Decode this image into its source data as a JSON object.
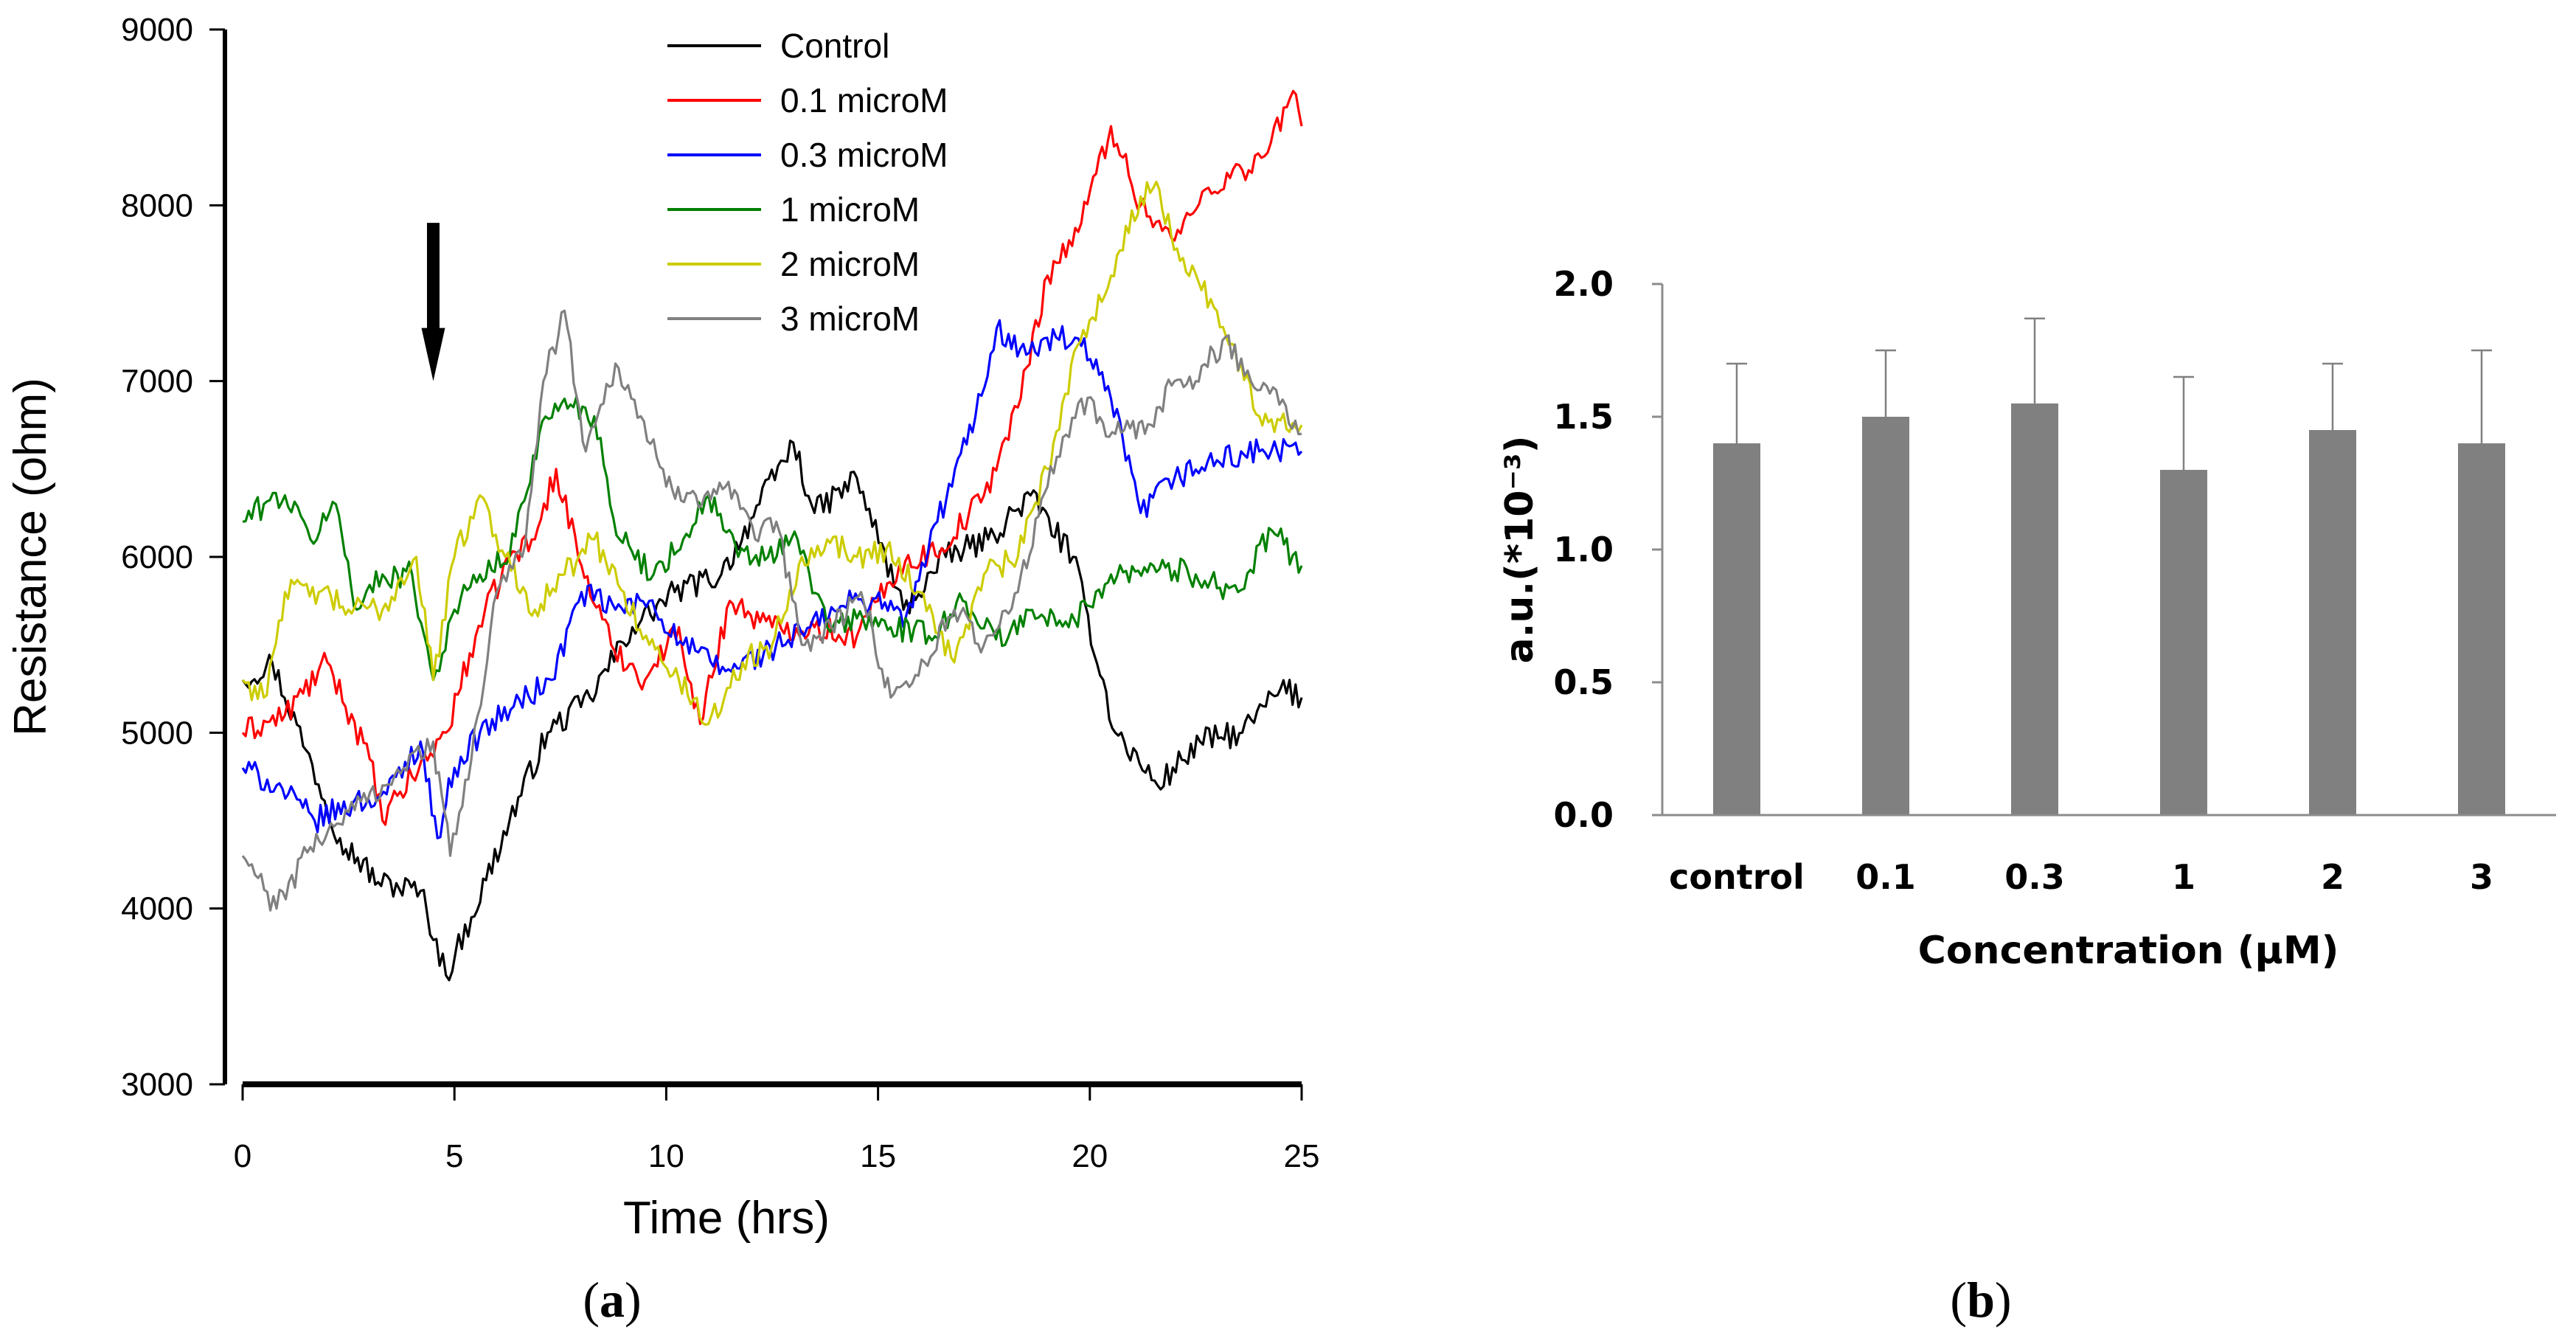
{
  "chart_data": [
    {
      "type": "line",
      "panel_label": "a",
      "xlabel": "Time (hrs)",
      "ylabel": "Resistance (ohm)",
      "xlim": [
        0,
        25
      ],
      "ylim": [
        3000,
        9000
      ],
      "xticks": [
        "0",
        "5",
        "10",
        "15",
        "20",
        "25"
      ],
      "yticks": [
        "3000",
        "4000",
        "5000",
        "6000",
        "7000",
        "8000",
        "9000"
      ],
      "annotation": {
        "type": "arrow",
        "x": 4.5,
        "y_from": 7900,
        "y_to": 7000,
        "label": ""
      },
      "legend_position": "top-center",
      "series": [
        {
          "name": "Control",
          "color": "#000000",
          "x": [
            0,
            0.7,
            1.5,
            2.3,
            3.2,
            4.2,
            4.8,
            5.4,
            6.3,
            7.2,
            8.2,
            9.2,
            10.2,
            11.3,
            12.2,
            13.0,
            13.5,
            14.5,
            15.6,
            16.6,
            17.6,
            18.6,
            19.6,
            20.6,
            21.6,
            22.6,
            23.6,
            24.5,
            25
          ],
          "y": [
            5300,
            5400,
            4900,
            4400,
            4150,
            4100,
            3620,
            3950,
            4500,
            5000,
            5200,
            5600,
            5800,
            5900,
            6300,
            6650,
            6250,
            6450,
            5700,
            6000,
            6100,
            6350,
            6000,
            5000,
            4700,
            4950,
            5000,
            5250,
            5200
          ]
        },
        {
          "name": "0.1 microM",
          "color": "#ff0000",
          "x": [
            0,
            1.0,
            2.0,
            3.0,
            3.3,
            4.0,
            4.8,
            5.5,
            6.3,
            6.9,
            7.4,
            8.0,
            8.7,
            9.5,
            10.3,
            10.8,
            11.5,
            12.5,
            13.5,
            14.5,
            15.5,
            16.5,
            17.5,
            18.3,
            19.0,
            19.8,
            20.5,
            21.2,
            22.0,
            22.8,
            23.6,
            24.2,
            24.8,
            25
          ],
          "y": [
            5000,
            5100,
            5400,
            4850,
            4500,
            4750,
            5000,
            5550,
            6000,
            6100,
            6500,
            5950,
            5500,
            5300,
            5600,
            5050,
            5750,
            5600,
            5600,
            5550,
            5950,
            6050,
            6350,
            6850,
            7600,
            7900,
            8450,
            8000,
            7800,
            8100,
            8200,
            8300,
            8650,
            8450
          ]
        },
        {
          "name": "0.3 microM",
          "color": "#0000ff",
          "x": [
            0,
            0.8,
            1.7,
            2.6,
            3.4,
            4.2,
            4.6,
            5.0,
            5.6,
            6.4,
            7.3,
            8.0,
            8.8,
            9.6,
            10.4,
            11.4,
            12.3,
            13.4,
            14.4,
            15.3,
            15.6,
            16.4,
            17.3,
            17.8,
            18.5,
            19.2,
            19.8,
            20.5,
            21.2,
            22.0,
            23.0,
            24.0,
            25
          ],
          "y": [
            4800,
            4700,
            4500,
            4600,
            4650,
            4950,
            4400,
            4800,
            5000,
            5150,
            5300,
            5800,
            5700,
            5750,
            5500,
            5350,
            5450,
            5600,
            5750,
            5750,
            5600,
            6200,
            6800,
            7300,
            7150,
            7250,
            7200,
            6900,
            6250,
            6450,
            6550,
            6600,
            6600
          ]
        },
        {
          "name": "1 microM",
          "color": "#008000",
          "x": [
            0,
            0.5,
            1.0,
            1.6,
            2.2,
            2.7,
            3.3,
            4.0,
            4.5,
            5.0,
            5.6,
            6.3,
            7.0,
            7.6,
            8.3,
            8.9,
            9.7,
            10.4,
            11.0,
            11.7,
            12.4,
            13.1,
            13.8,
            14.5,
            15.3,
            16.2,
            17.0,
            18.0,
            18.5,
            19.5,
            20.5,
            21.5,
            22.5,
            23.5,
            24.3,
            25
          ],
          "y": [
            6200,
            6300,
            6350,
            6100,
            6300,
            5700,
            5900,
            5900,
            5300,
            5700,
            5900,
            6000,
            6700,
            6900,
            6800,
            6100,
            5900,
            6100,
            6350,
            6000,
            6000,
            6100,
            5600,
            5650,
            5600,
            5550,
            5750,
            5500,
            5700,
            5600,
            5900,
            5950,
            5900,
            5800,
            6150,
            5950
          ]
        },
        {
          "name": "2 microM",
          "color": "#cccc00",
          "x": [
            0,
            0.5,
            1.0,
            1.8,
            2.5,
            3.3,
            4.1,
            4.5,
            5.0,
            5.6,
            6.2,
            6.9,
            7.6,
            8.3,
            9.0,
            9.6,
            10.3,
            11.0,
            11.8,
            12.5,
            13.2,
            13.8,
            14.5,
            15.2,
            16.0,
            16.8,
            17.5,
            18.3,
            19.0,
            19.7,
            20.5,
            21.2,
            21.5,
            22.2,
            23.0,
            24.0,
            25
          ],
          "y": [
            5300,
            5200,
            5800,
            5800,
            5700,
            5700,
            6000,
            5300,
            6000,
            6350,
            6000,
            5700,
            5900,
            6100,
            5800,
            5500,
            5300,
            5050,
            5400,
            5500,
            6000,
            6100,
            6000,
            6050,
            5800,
            5400,
            5900,
            6000,
            6500,
            7200,
            7600,
            8050,
            8100,
            7700,
            7400,
            6800,
            6750
          ]
        },
        {
          "name": "3 microM",
          "color": "#808080",
          "x": [
            0,
            0.8,
            1.6,
            2.5,
            3.3,
            3.8,
            4.5,
            4.9,
            5.4,
            6.0,
            6.6,
            7.1,
            7.6,
            8.1,
            8.8,
            9.4,
            10.0,
            10.7,
            11.4,
            12.1,
            12.6,
            13.2,
            13.9,
            14.6,
            15.3,
            16.1,
            16.8,
            17.5,
            18.3,
            19.0,
            19.8,
            20.6,
            21.3,
            22.0,
            22.5,
            23.2,
            23.8,
            24.4,
            25
          ],
          "y": [
            4300,
            4000,
            4350,
            4550,
            4700,
            4800,
            4950,
            4300,
            4850,
            5800,
            6000,
            7000,
            7400,
            6600,
            7100,
            6800,
            6400,
            6350,
            6400,
            6100,
            6200,
            5500,
            5600,
            5800,
            5200,
            5400,
            5700,
            5500,
            5800,
            6400,
            6900,
            6700,
            6700,
            7000,
            7000,
            7250,
            7000,
            6950,
            6700
          ]
        }
      ]
    },
    {
      "type": "bar",
      "panel_label": "b",
      "xlabel": "Concentration (μM)",
      "ylabel": "a.u.(*10⁻³)",
      "ylim": [
        0.0,
        2.0
      ],
      "yticks": [
        "0.0",
        "0.5",
        "1.0",
        "1.5",
        "2.0"
      ],
      "categories": [
        "control",
        "0.1",
        "0.3",
        "1",
        "2",
        "3"
      ],
      "values": [
        1.4,
        1.5,
        1.55,
        1.3,
        1.45,
        1.4
      ],
      "errors": [
        0.3,
        0.25,
        0.32,
        0.35,
        0.25,
        0.35
      ],
      "bar_color": "#808080"
    }
  ]
}
